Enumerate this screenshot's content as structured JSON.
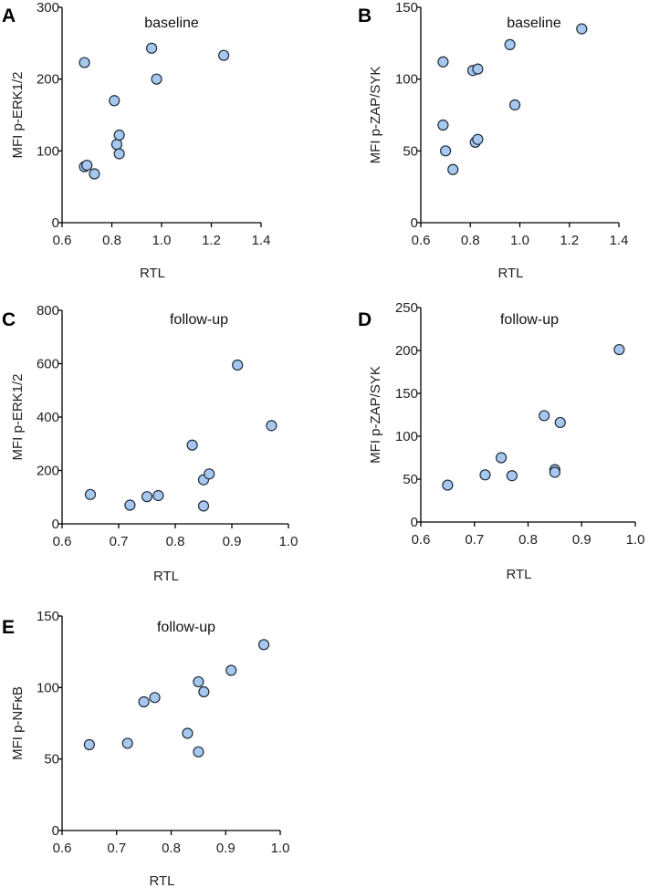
{
  "colors": {
    "point_fill": "#a6c8ef",
    "point_stroke": "#1f2a3a",
    "axis": "#000000"
  },
  "chart_data": [
    {
      "id": "A",
      "letter": "A",
      "type": "scatter",
      "title": "baseline",
      "xlabel": "RTL",
      "ylabel": "MFI p-ERK1/2",
      "xlim": [
        0.6,
        1.4
      ],
      "ylim": [
        0,
        300
      ],
      "xticks": [
        "0.6",
        "0.8",
        "1.0",
        "1.2",
        "1.4"
      ],
      "yticks": [
        "0",
        "100",
        "200",
        "300"
      ],
      "points": [
        {
          "x": 0.69,
          "y": 223
        },
        {
          "x": 0.69,
          "y": 78
        },
        {
          "x": 0.7,
          "y": 80
        },
        {
          "x": 0.73,
          "y": 68
        },
        {
          "x": 0.81,
          "y": 170
        },
        {
          "x": 0.82,
          "y": 109
        },
        {
          "x": 0.83,
          "y": 122
        },
        {
          "x": 0.83,
          "y": 96
        },
        {
          "x": 0.96,
          "y": 243
        },
        {
          "x": 0.98,
          "y": 200
        },
        {
          "x": 1.25,
          "y": 233
        }
      ]
    },
    {
      "id": "B",
      "letter": "B",
      "type": "scatter",
      "title": "baseline",
      "xlabel": "RTL",
      "ylabel": "MFI p-ZAP/SYK",
      "xlim": [
        0.6,
        1.4
      ],
      "ylim": [
        0,
        150
      ],
      "xticks": [
        "0.6",
        "0.8",
        "1.0",
        "1.2",
        "1.4"
      ],
      "yticks": [
        "0",
        "50",
        "100",
        "150"
      ],
      "points": [
        {
          "x": 0.69,
          "y": 112
        },
        {
          "x": 0.69,
          "y": 68
        },
        {
          "x": 0.7,
          "y": 50
        },
        {
          "x": 0.73,
          "y": 37
        },
        {
          "x": 0.81,
          "y": 106
        },
        {
          "x": 0.83,
          "y": 107
        },
        {
          "x": 0.82,
          "y": 56
        },
        {
          "x": 0.83,
          "y": 58
        },
        {
          "x": 0.96,
          "y": 124
        },
        {
          "x": 0.98,
          "y": 82
        },
        {
          "x": 1.25,
          "y": 135
        }
      ]
    },
    {
      "id": "C",
      "letter": "C",
      "type": "scatter",
      "title": "follow-up",
      "xlabel": "RTL",
      "ylabel": "MFI p-ERK1/2",
      "xlim": [
        0.6,
        1.0
      ],
      "ylim": [
        0,
        800
      ],
      "xticks": [
        "0.6",
        "0.7",
        "0.8",
        "0.9",
        "1.0"
      ],
      "yticks": [
        "0",
        "200",
        "400",
        "600",
        "800"
      ],
      "points": [
        {
          "x": 0.65,
          "y": 110
        },
        {
          "x": 0.72,
          "y": 70
        },
        {
          "x": 0.75,
          "y": 102
        },
        {
          "x": 0.77,
          "y": 106
        },
        {
          "x": 0.83,
          "y": 295
        },
        {
          "x": 0.85,
          "y": 165
        },
        {
          "x": 0.86,
          "y": 187
        },
        {
          "x": 0.85,
          "y": 67
        },
        {
          "x": 0.91,
          "y": 595
        },
        {
          "x": 0.97,
          "y": 368
        }
      ]
    },
    {
      "id": "D",
      "letter": "D",
      "type": "scatter",
      "title": "follow-up",
      "xlabel": "RTL",
      "ylabel": "MFI p-ZAP/SYK",
      "xlim": [
        0.6,
        1.0
      ],
      "ylim": [
        0,
        250
      ],
      "xticks": [
        "0.6",
        "0.7",
        "0.8",
        "0.9",
        "1.0"
      ],
      "yticks": [
        "0",
        "50",
        "100",
        "150",
        "200",
        "250"
      ],
      "points": [
        {
          "x": 0.65,
          "y": 43
        },
        {
          "x": 0.72,
          "y": 55
        },
        {
          "x": 0.75,
          "y": 75
        },
        {
          "x": 0.77,
          "y": 54
        },
        {
          "x": 0.83,
          "y": 124
        },
        {
          "x": 0.86,
          "y": 116
        },
        {
          "x": 0.85,
          "y": 61
        },
        {
          "x": 0.85,
          "y": 58
        },
        {
          "x": 0.97,
          "y": 201
        }
      ]
    },
    {
      "id": "E",
      "letter": "E",
      "type": "scatter",
      "title": "follow-up",
      "xlabel": "RTL",
      "ylabel": "MFI p-NFκB",
      "xlim": [
        0.6,
        1.0
      ],
      "ylim": [
        0,
        150
      ],
      "xticks": [
        "0.6",
        "0.7",
        "0.8",
        "0.9",
        "1.0"
      ],
      "yticks": [
        "0",
        "50",
        "100",
        "150"
      ],
      "points": [
        {
          "x": 0.65,
          "y": 60
        },
        {
          "x": 0.72,
          "y": 61
        },
        {
          "x": 0.75,
          "y": 90
        },
        {
          "x": 0.77,
          "y": 93
        },
        {
          "x": 0.83,
          "y": 68
        },
        {
          "x": 0.85,
          "y": 55
        },
        {
          "x": 0.85,
          "y": 104
        },
        {
          "x": 0.86,
          "y": 97
        },
        {
          "x": 0.91,
          "y": 112
        },
        {
          "x": 0.97,
          "y": 130
        }
      ]
    }
  ]
}
